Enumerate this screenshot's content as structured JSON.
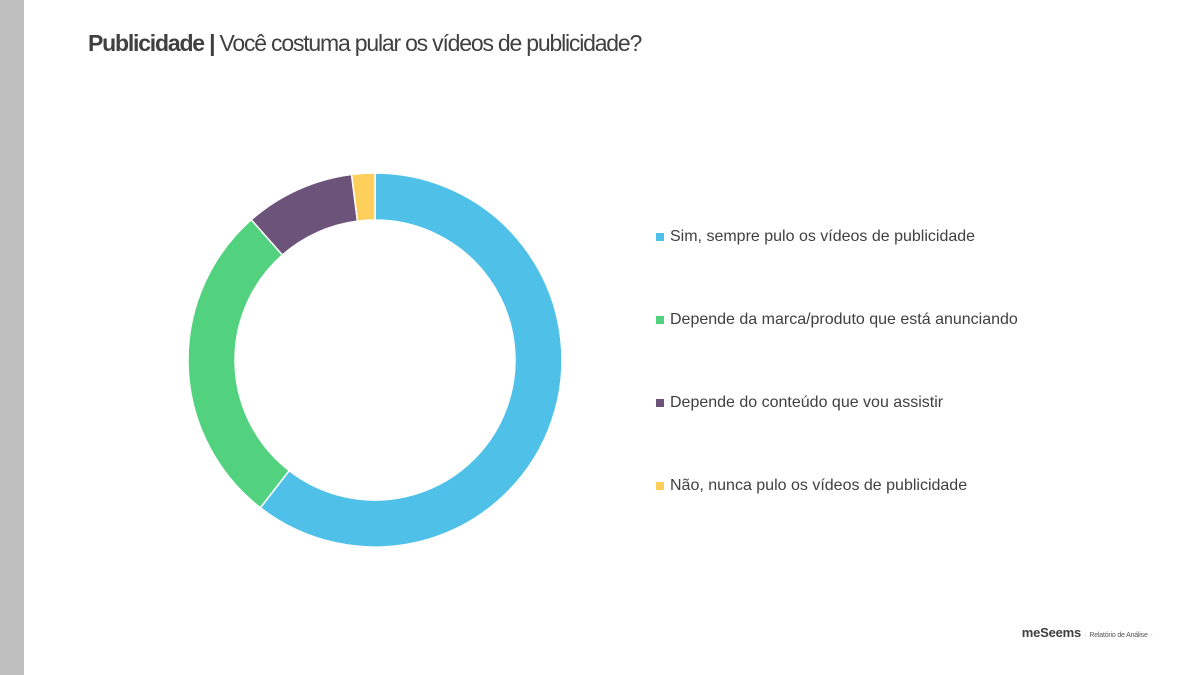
{
  "title": {
    "bold": "Publicidade |",
    "rest": " Você costuma pular os vídeos de publicidade?"
  },
  "chart_data": {
    "type": "pie",
    "donut": true,
    "title": "Publicidade | Você costuma pular os vídeos de publicidade?",
    "legend_position": "right",
    "slices": [
      {
        "label": "Sim, sempre pulo os vídeos de publicidade",
        "value": 60.5,
        "color": "#4fc1e9"
      },
      {
        "label": "Depende da marca/produto que está anunciando",
        "value": 28.0,
        "color": "#52d27e"
      },
      {
        "label": "Depende do conteúdo que vou assistir",
        "value": 9.5,
        "color": "#6b5379"
      },
      {
        "label": "Não, nunca pulo os vídeos de publicidade",
        "value": 2.0,
        "color": "#fecf5b"
      }
    ]
  },
  "footer": {
    "brand": "meSeems",
    "separator": "·",
    "text": "Relatório de Análise",
    "trailing": "·"
  },
  "colors": {
    "sidebar": "#bfbfbf",
    "text": "#404040"
  }
}
